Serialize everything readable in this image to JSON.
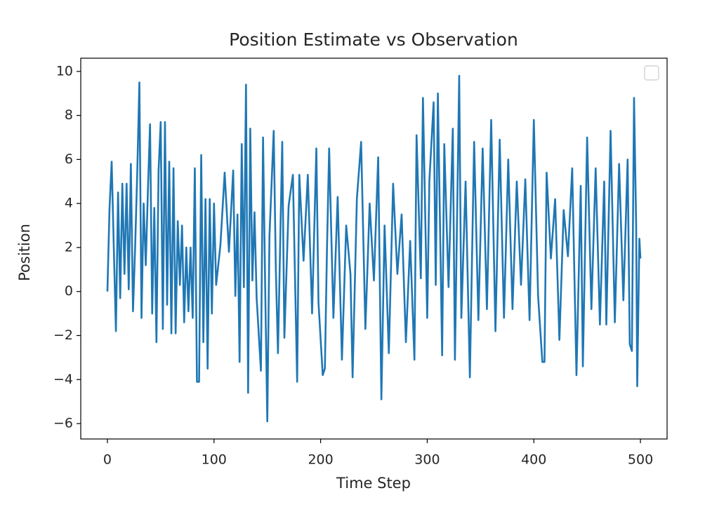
{
  "chart_data": {
    "type": "line",
    "title": "Position Estimate vs Observation",
    "x_label": "Time Step",
    "y_label": "Position",
    "xlim": [
      -25,
      525
    ],
    "ylim": [
      -6.7,
      10.6
    ],
    "xticks": [
      0,
      100,
      200,
      300,
      400,
      500
    ],
    "yticks": [
      {
        "value": -6,
        "label": "−6"
      },
      {
        "value": -4,
        "label": "−4"
      },
      {
        "value": -2,
        "label": "−2"
      },
      0,
      2,
      4,
      6,
      8,
      10
    ],
    "grid": false,
    "x": [
      0,
      2,
      4,
      6,
      8,
      10,
      12,
      14,
      16,
      18,
      20,
      22,
      24,
      26,
      28,
      30,
      32,
      34,
      36,
      38,
      40,
      42,
      44,
      46,
      48,
      50,
      52,
      54,
      56,
      58,
      60,
      62,
      64,
      66,
      68,
      70,
      72,
      74,
      76,
      78,
      80,
      82,
      84,
      86,
      88,
      90,
      92,
      94,
      96,
      98,
      100,
      102,
      106,
      110,
      114,
      118,
      120,
      122,
      124,
      126,
      128,
      130,
      132,
      134,
      136,
      138,
      140,
      144,
      146,
      148,
      150,
      152,
      156,
      158,
      160,
      164,
      166,
      170,
      174,
      178,
      180,
      184,
      188,
      192,
      196,
      198,
      202,
      204,
      206,
      208,
      212,
      216,
      220,
      224,
      228,
      230,
      234,
      238,
      242,
      246,
      250,
      254,
      257,
      260,
      264,
      268,
      272,
      276,
      280,
      284,
      288,
      290,
      294,
      296,
      300,
      302,
      306,
      308,
      310,
      314,
      316,
      320,
      324,
      326,
      330,
      332,
      336,
      340,
      344,
      348,
      352,
      356,
      360,
      364,
      368,
      372,
      376,
      380,
      384,
      388,
      392,
      396,
      400,
      404,
      408,
      410,
      412,
      416,
      420,
      424,
      428,
      432,
      436,
      440,
      444,
      446,
      450,
      454,
      458,
      462,
      466,
      468,
      472,
      476,
      480,
      484,
      488,
      490,
      492,
      494,
      496,
      497,
      499,
      500
    ],
    "series": [
      {
        "color": "#1f77b4",
        "values": [
          0.0,
          3.8,
          5.9,
          2.0,
          -1.8,
          4.5,
          -0.3,
          4.9,
          0.8,
          4.9,
          0.1,
          5.8,
          -0.9,
          2.0,
          5.4,
          9.5,
          -1.2,
          4.0,
          1.2,
          4.6,
          7.6,
          -1.0,
          3.8,
          -2.3,
          5.5,
          7.7,
          -1.7,
          7.7,
          -0.6,
          5.9,
          -1.9,
          5.6,
          -1.9,
          3.2,
          0.3,
          3.0,
          -1.4,
          2.0,
          -0.9,
          2.0,
          -1.2,
          5.6,
          -4.1,
          -4.1,
          6.2,
          -2.3,
          4.2,
          -3.5,
          4.2,
          -1.0,
          4.0,
          0.3,
          2.1,
          5.4,
          1.8,
          5.5,
          -0.2,
          3.5,
          -3.2,
          6.7,
          0.2,
          9.4,
          -4.6,
          7.4,
          0.5,
          3.6,
          -0.3,
          -3.6,
          7.0,
          0.2,
          -5.9,
          2.5,
          7.3,
          1.0,
          -2.8,
          6.8,
          -2.1,
          3.9,
          5.3,
          -4.1,
          5.3,
          1.4,
          5.3,
          -1.0,
          6.5,
          -0.5,
          -3.8,
          -3.5,
          2.0,
          6.5,
          -1.2,
          4.3,
          -3.1,
          3.0,
          0.8,
          -3.9,
          4.2,
          6.8,
          -1.7,
          4.0,
          0.5,
          6.1,
          -4.9,
          3.0,
          -2.8,
          4.9,
          0.8,
          3.5,
          -2.3,
          2.3,
          -3.1,
          7.1,
          0.6,
          8.8,
          -1.2,
          5.0,
          8.6,
          0.3,
          9.0,
          -2.9,
          6.7,
          0.2,
          7.4,
          -3.1,
          9.8,
          -1.2,
          5.0,
          -3.9,
          6.8,
          -1.3,
          6.5,
          -0.8,
          7.8,
          -1.8,
          6.9,
          -1.2,
          6.0,
          -0.8,
          5.0,
          0.3,
          5.1,
          -1.3,
          7.8,
          -0.2,
          -3.2,
          -3.2,
          5.4,
          1.5,
          4.2,
          -2.2,
          3.7,
          1.6,
          5.6,
          -3.8,
          4.8,
          -3.4,
          7.0,
          -0.8,
          5.6,
          -1.5,
          5.0,
          -1.5,
          7.3,
          -1.4,
          5.8,
          -0.4,
          6.0,
          -2.4,
          -2.7,
          8.8,
          3.0,
          -4.3,
          2.4,
          1.5
        ]
      }
    ]
  }
}
